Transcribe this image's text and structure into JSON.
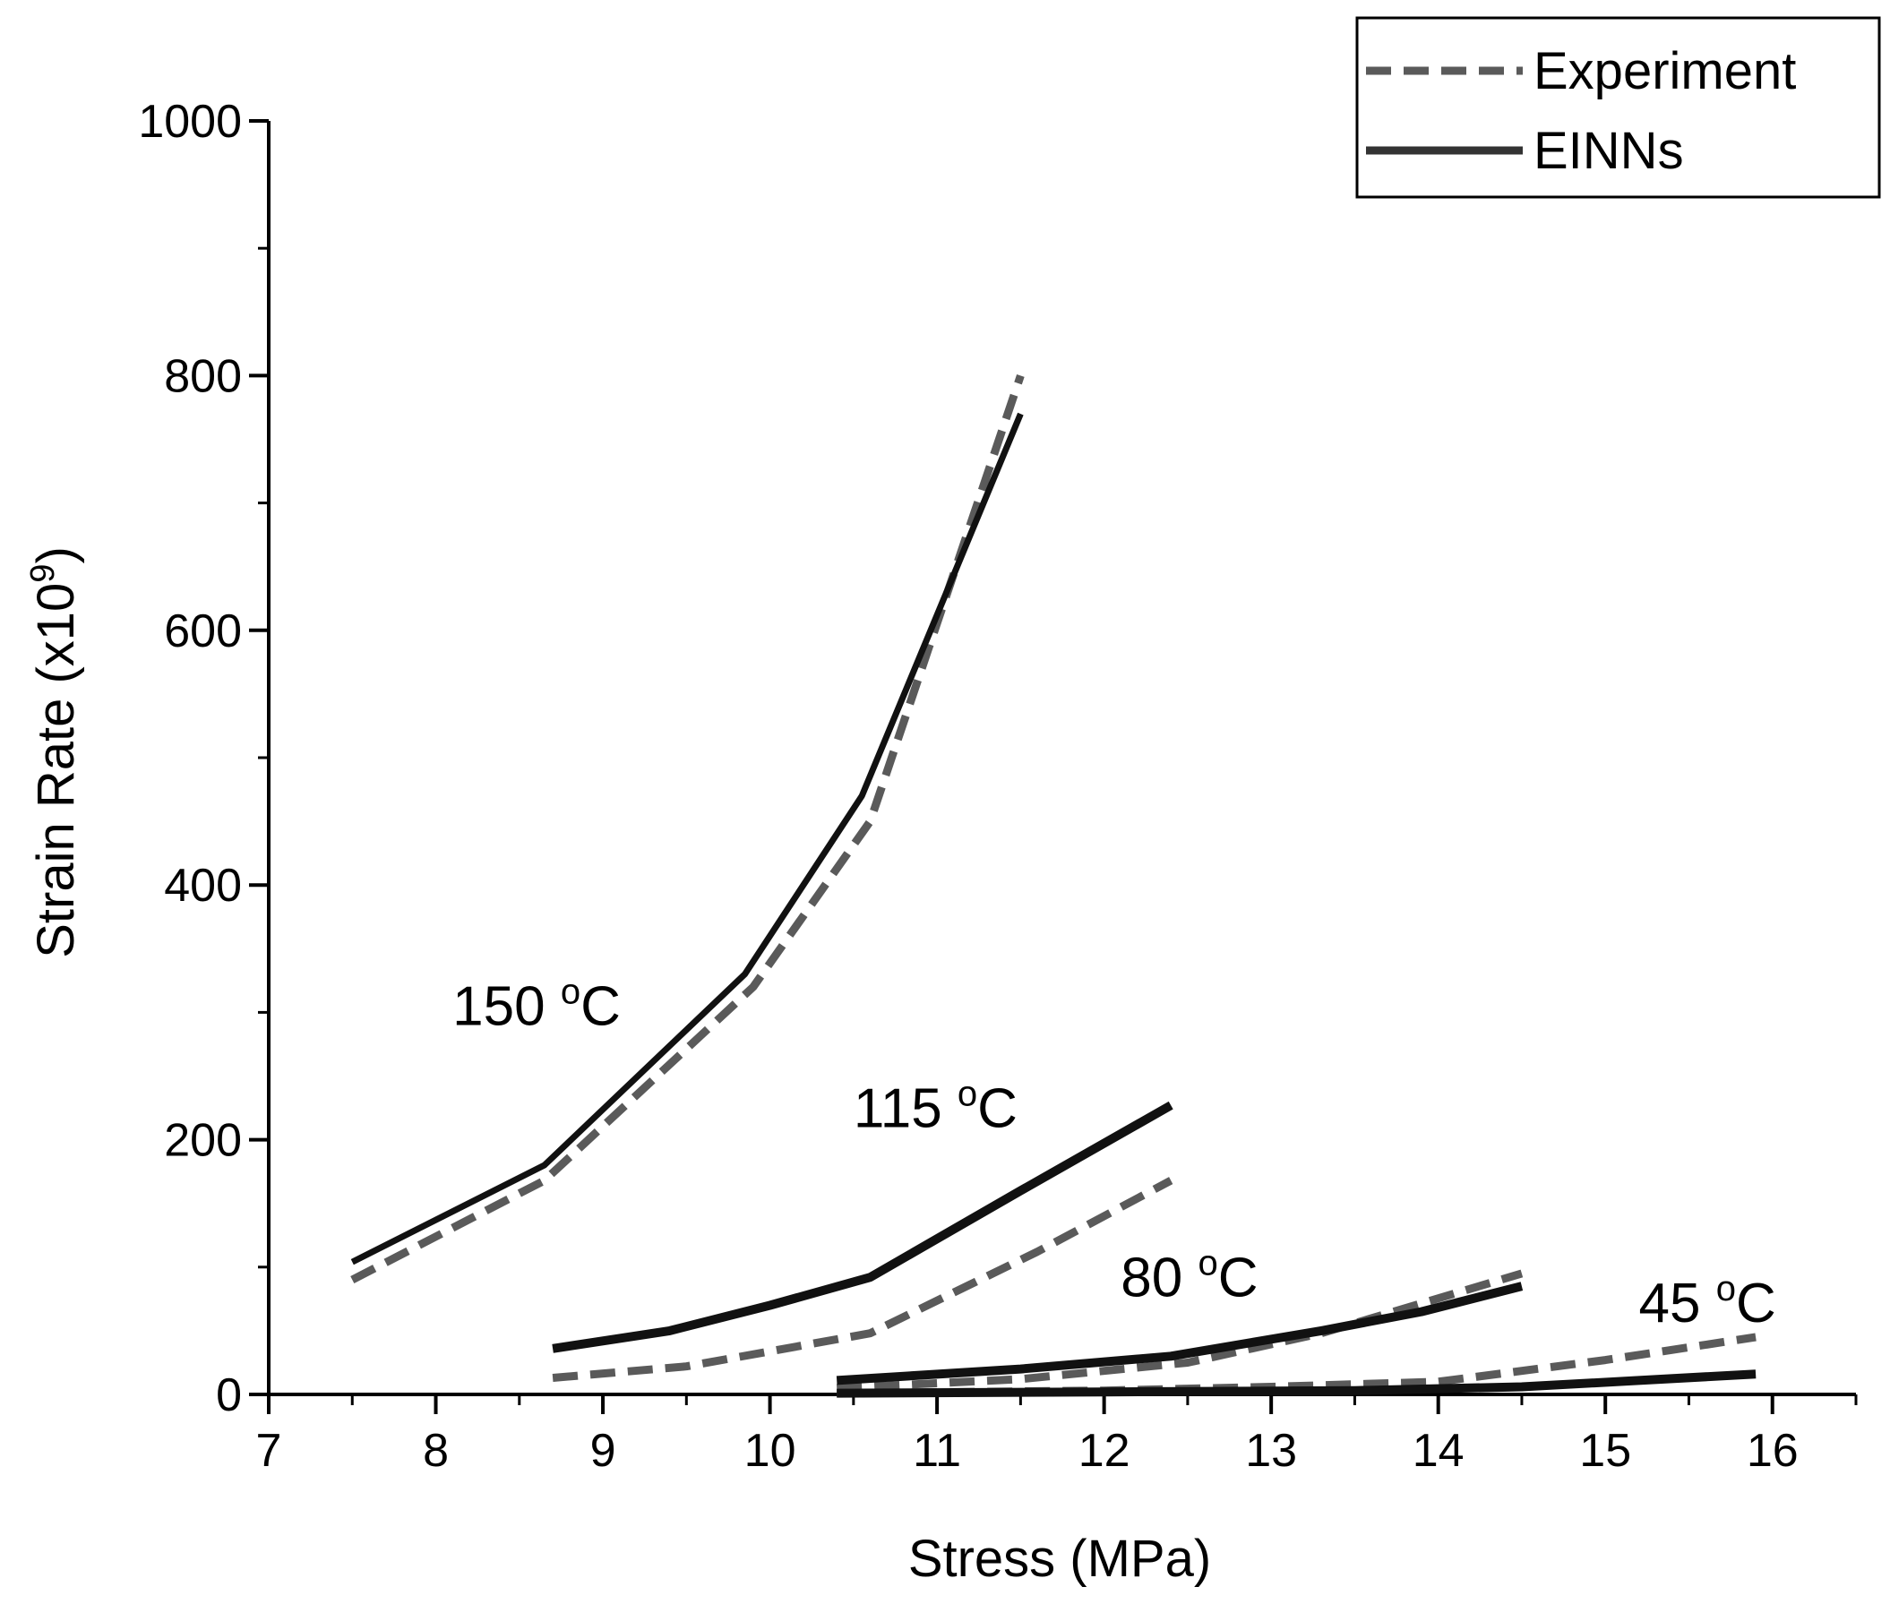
{
  "chart_data": {
    "type": "line",
    "title": "",
    "xlabel": "Stress (MPa)",
    "ylabel": "Strain Rate (x10",
    "ylabel_sup": "9",
    "ylabel_close": ")",
    "xlim": [
      7,
      16.5
    ],
    "ylim": [
      0,
      1000
    ],
    "xticks": [
      7,
      8,
      9,
      10,
      11,
      12,
      13,
      14,
      15,
      16
    ],
    "yticks": [
      0,
      200,
      400,
      600,
      800,
      1000
    ],
    "grid": false,
    "legend_position": "top-right",
    "legend": [
      {
        "label": "Experiment",
        "style": "dashed",
        "color": "#555555"
      },
      {
        "label": "EINNs",
        "style": "solid",
        "color": "#333333"
      }
    ],
    "annotations": [
      {
        "text": "150 ",
        "sup": "o",
        "tail": "C",
        "x": 8.1,
        "y": 290
      },
      {
        "text": "115 ",
        "sup": "o",
        "tail": "C",
        "x": 10.5,
        "y": 210
      },
      {
        "text": "80 ",
        "sup": "o",
        "tail": "C",
        "x": 12.1,
        "y": 77
      },
      {
        "text": "45 ",
        "sup": "o",
        "tail": "C",
        "x": 15.2,
        "y": 57
      }
    ],
    "series": [
      {
        "name": "Experiment 150 °C",
        "kind": "experiment",
        "x": [
          7.5,
          8.65,
          9.9,
          10.6,
          11.5
        ],
        "y": [
          90,
          168,
          320,
          450,
          800
        ]
      },
      {
        "name": "EINNs 150 °C",
        "kind": "einns",
        "x": [
          7.5,
          8.65,
          9.85,
          10.55,
          11.5
        ],
        "y": [
          104,
          180,
          330,
          470,
          770
        ]
      },
      {
        "name": "Experiment 115 °C",
        "kind": "experiment",
        "x": [
          8.7,
          9.5,
          10.6,
          11.6,
          12.4
        ],
        "y": [
          13,
          22,
          48,
          112,
          168
        ]
      },
      {
        "name": "EINNs 115 °C",
        "kind": "einns",
        "x": [
          8.7,
          9.4,
          10.0,
          10.6,
          11.5,
          12.4
        ],
        "y": [
          36,
          50,
          70,
          92,
          160,
          227
        ]
      },
      {
        "name": "Experiment 80 °C",
        "kind": "experiment",
        "x": [
          10.4,
          11.5,
          12.5,
          13.3,
          14.5
        ],
        "y": [
          5,
          12,
          25,
          48,
          95
        ]
      },
      {
        "name": "EINNs 80 °C",
        "kind": "einns",
        "x": [
          10.4,
          11.5,
          12.4,
          13.3,
          13.9,
          14.5
        ],
        "y": [
          11,
          20,
          30,
          50,
          65,
          85
        ]
      },
      {
        "name": "Experiment 45 °C",
        "kind": "experiment",
        "x": [
          10.4,
          12.0,
          13.0,
          14.0,
          15.0,
          15.9
        ],
        "y": [
          1,
          3,
          6,
          10,
          27,
          45
        ]
      },
      {
        "name": "EINNs 45 °C",
        "kind": "einns",
        "x": [
          10.4,
          12.0,
          13.5,
          14.5,
          15.2,
          15.9
        ],
        "y": [
          1,
          2,
          3,
          6,
          11,
          16
        ]
      }
    ]
  }
}
